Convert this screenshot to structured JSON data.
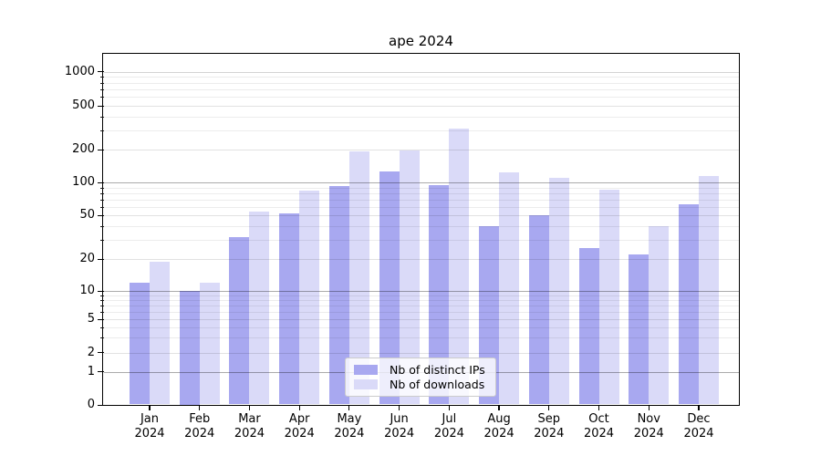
{
  "title": "ape 2024",
  "legend": {
    "items": [
      {
        "label": "Nb of distinct IPs",
        "color": "#a8a8f0"
      },
      {
        "label": "Nb of downloads",
        "color": "#dadaf8"
      }
    ]
  },
  "axes": {
    "y_tick_labels": [
      "0",
      "1",
      "2",
      "5",
      "10",
      "20",
      "50",
      "100",
      "200",
      "500",
      "1000"
    ],
    "x_tick_line2": "2024"
  },
  "chart_data": {
    "type": "bar",
    "title": "ape 2024",
    "categories": [
      "Jan 2024",
      "Feb 2024",
      "Mar 2024",
      "Apr 2024",
      "May 2024",
      "Jun 2024",
      "Jul 2024",
      "Aug 2024",
      "Sep 2024",
      "Oct 2024",
      "Nov 2024",
      "Dec 2024"
    ],
    "series": [
      {
        "name": "Nb of distinct IPs",
        "color": "#a8a8f0",
        "values": [
          12,
          10,
          32,
          52,
          92,
          125,
          94,
          40,
          50,
          25,
          22,
          63
        ]
      },
      {
        "name": "Nb of downloads",
        "color": "#dadaf8",
        "values": [
          19,
          12,
          54,
          84,
          192,
          197,
          312,
          124,
          110,
          86,
          40,
          114
        ]
      }
    ],
    "xlabel": "",
    "ylabel": "",
    "yscale": "symlog",
    "y_ticks": [
      0,
      1,
      2,
      5,
      10,
      20,
      50,
      100,
      200,
      500,
      1000
    ],
    "ylim": [
      0,
      1400
    ],
    "grid": "horizontal major and minor log gridlines, drawn above bars",
    "legend_position": "lower center"
  },
  "grid_colors": {
    "major": "rgba(0,0,0,0.33)",
    "top_major": "rgba(0,0,0,0.17)",
    "labeled_minor": "rgba(0,0,0,0.115)",
    "minor": "rgba(0,0,0,0.075)"
  }
}
